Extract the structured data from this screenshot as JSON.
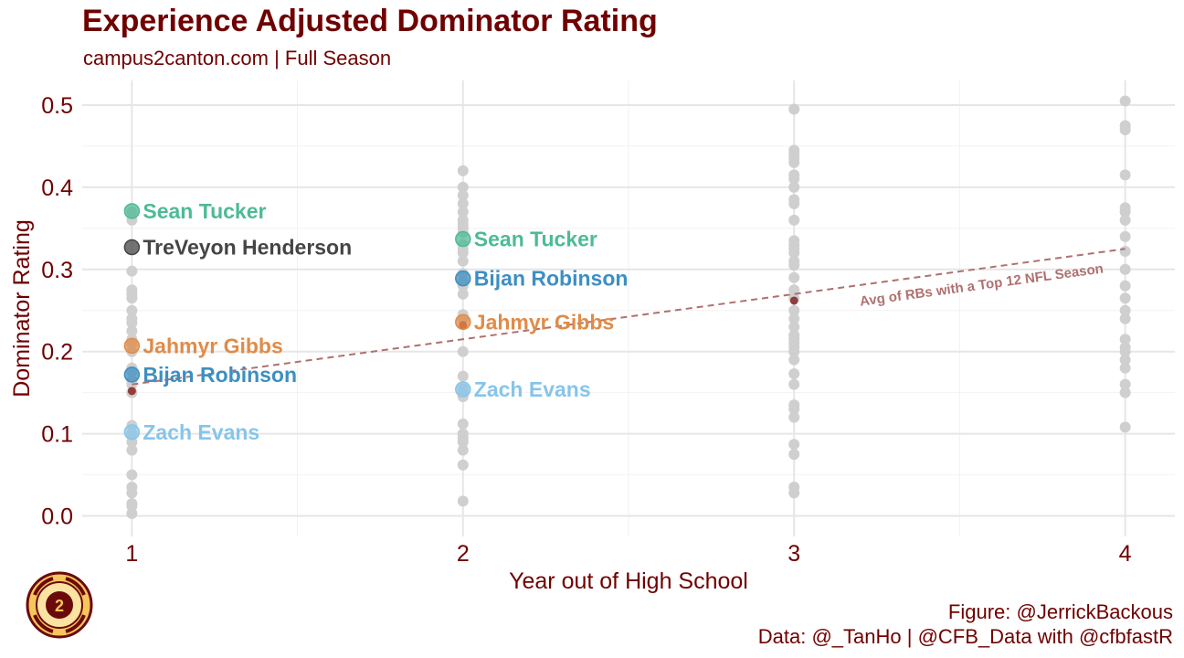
{
  "header": {
    "title": "Experience Adjusted Dominator Rating",
    "subtitle": "campus2canton.com | Full Season"
  },
  "caption": {
    "figure": "Figure: @JerrickBackous",
    "data": "Data: @_TanHo | @CFB_Data with @cfbfastR"
  },
  "logo": {
    "icon": "campus2canton-helmet-logo",
    "text": "CAMPUS 2 CANTON"
  },
  "colors": {
    "title": "#700000",
    "background_points": "#cfcfcf",
    "avg_line": "#b07070",
    "avg_points": "#8b2c2c",
    "sean_tucker": "#4dbb95",
    "treveyon_henderson": "#454545",
    "bijan_robinson": "#3d8fc2",
    "jahmyr_gibbs": "#e08b48",
    "zach_evans": "#86c5ea"
  },
  "chart_data": {
    "type": "scatter",
    "title": "Experience Adjusted Dominator Rating",
    "subtitle": "campus2canton.com | Full Season",
    "xlabel": "Year out of High School",
    "ylabel": "Dominator Rating",
    "xlim": [
      0.85,
      4.15
    ],
    "ylim": [
      -0.025,
      0.53
    ],
    "x_ticks": [
      1,
      2,
      3,
      4
    ],
    "y_ticks": [
      0.0,
      0.1,
      0.2,
      0.3,
      0.4,
      0.5
    ],
    "y_tick_labels": [
      "0.0",
      "0.1",
      "0.2",
      "0.3",
      "0.4",
      "0.5"
    ],
    "grid": true,
    "background_points": [
      {
        "x": 1,
        "y": [
          0.003,
          0.012,
          0.015,
          0.028,
          0.035,
          0.05,
          0.08,
          0.09,
          0.1,
          0.11,
          0.15,
          0.16,
          0.165,
          0.175,
          0.18,
          0.2,
          0.21,
          0.215,
          0.225,
          0.235,
          0.24,
          0.25,
          0.265,
          0.27,
          0.275,
          0.298,
          0.36,
          0.37
        ]
      },
      {
        "x": 2,
        "y": [
          0.018,
          0.062,
          0.08,
          0.09,
          0.095,
          0.1,
          0.112,
          0.145,
          0.15,
          0.155,
          0.17,
          0.2,
          0.24,
          0.245,
          0.27,
          0.28,
          0.285,
          0.295,
          0.31,
          0.32,
          0.325,
          0.33,
          0.345,
          0.35,
          0.355,
          0.36,
          0.37,
          0.38,
          0.39,
          0.4,
          0.42
        ]
      },
      {
        "x": 3,
        "y": [
          0.028,
          0.035,
          0.075,
          0.087,
          0.12,
          0.13,
          0.135,
          0.16,
          0.173,
          0.19,
          0.2,
          0.205,
          0.21,
          0.215,
          0.22,
          0.23,
          0.24,
          0.25,
          0.265,
          0.275,
          0.29,
          0.305,
          0.31,
          0.32,
          0.325,
          0.33,
          0.335,
          0.36,
          0.38,
          0.385,
          0.4,
          0.41,
          0.415,
          0.43,
          0.435,
          0.44,
          0.445,
          0.495
        ]
      },
      {
        "x": 4,
        "y": [
          0.108,
          0.15,
          0.16,
          0.18,
          0.19,
          0.2,
          0.205,
          0.215,
          0.24,
          0.25,
          0.265,
          0.28,
          0.3,
          0.322,
          0.34,
          0.36,
          0.37,
          0.375,
          0.415,
          0.47,
          0.475,
          0.505
        ]
      }
    ],
    "avg_series": {
      "label": "Avg of RBs with a Top 12 NFL Season",
      "points": [
        {
          "x": 1,
          "y": 0.152
        },
        {
          "x": 2,
          "y": 0.232
        },
        {
          "x": 3,
          "y": 0.262
        }
      ],
      "trend_start": {
        "x": 1,
        "y": 0.16
      },
      "trend_end": {
        "x": 4,
        "y": 0.325
      }
    },
    "series": [
      {
        "name": "Sean Tucker",
        "color_key": "sean_tucker",
        "points": [
          {
            "x": 1,
            "y": 0.371
          },
          {
            "x": 2,
            "y": 0.337
          }
        ]
      },
      {
        "name": "TreVeyon Henderson",
        "color_key": "treveyon_henderson",
        "points": [
          {
            "x": 1,
            "y": 0.327
          }
        ]
      },
      {
        "name": "Bijan Robinson",
        "color_key": "bijan_robinson",
        "points": [
          {
            "x": 1,
            "y": 0.172
          },
          {
            "x": 2,
            "y": 0.289
          }
        ]
      },
      {
        "name": "Jahmyr Gibbs",
        "color_key": "jahmyr_gibbs",
        "points": [
          {
            "x": 1,
            "y": 0.207
          },
          {
            "x": 2,
            "y": 0.236
          }
        ]
      },
      {
        "name": "Zach Evans",
        "color_key": "zach_evans",
        "points": [
          {
            "x": 1,
            "y": 0.102
          },
          {
            "x": 2,
            "y": 0.154
          }
        ]
      }
    ]
  }
}
